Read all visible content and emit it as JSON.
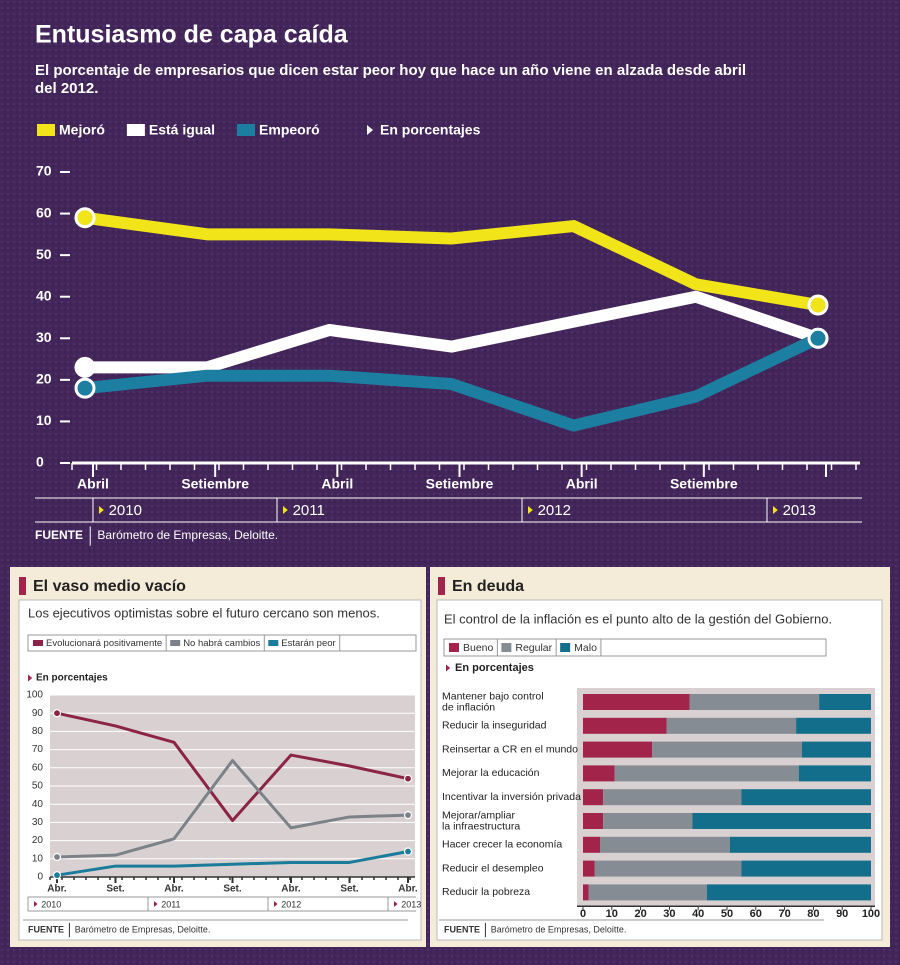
{
  "source_label": "FUENTE",
  "source": "Barómetro de Empresas, Deloitte.",
  "chart_data": [
    {
      "type": "line",
      "title": "Entusiasmo de capa caída",
      "subtitle": "El porcentaje de empresarios que dicen estar peor hoy que hace un año viene en alzada desde abril del 2012.",
      "note": "En porcentajes",
      "categories": [
        "Abril",
        "Setiembre",
        "Abril",
        "Setiembre",
        "Abril",
        "Setiembre",
        null
      ],
      "years": [
        "2010",
        "2011",
        "2012",
        "2013"
      ],
      "series": [
        {
          "name": "Mejoró",
          "color": "#f1e418",
          "values": [
            59,
            55,
            55,
            54,
            57,
            43,
            38
          ]
        },
        {
          "name": "Está igual",
          "color": "#ffffff",
          "values": [
            23,
            23,
            32,
            28,
            34,
            40,
            30
          ]
        },
        {
          "name": "Empeoró",
          "color": "#1c7fa2",
          "values": [
            18,
            21,
            21,
            19,
            9,
            16,
            30
          ]
        }
      ],
      "ylim": [
        0,
        70
      ],
      "yticks": [
        0,
        10,
        20,
        30,
        40,
        50,
        60,
        70
      ]
    },
    {
      "type": "line",
      "title": "El vaso medio vacío",
      "subtitle": "Los ejecutivos optimistas sobre el futuro cercano son menos.",
      "note": "En porcentajes",
      "categories": [
        "Abr.",
        "Set.",
        "Abr.",
        "Set.",
        "Abr.",
        "Set.",
        "Abr."
      ],
      "years": [
        "2010",
        "2011",
        "2012",
        "2013"
      ],
      "series": [
        {
          "name": "Evolucionará positivamente",
          "color": "#8c2448",
          "values": [
            90,
            83,
            74,
            31,
            67,
            61,
            54
          ]
        },
        {
          "name": "No habrá cambios",
          "color": "#7b8389",
          "values": [
            11,
            12,
            21,
            64,
            27,
            33,
            34
          ]
        },
        {
          "name": "Estarán peor",
          "color": "#1b7b9b",
          "values": [
            1,
            6,
            6,
            7,
            8,
            8,
            14
          ]
        }
      ],
      "ylim": [
        0,
        100
      ],
      "yticks": [
        0,
        10,
        20,
        30,
        40,
        50,
        60,
        70,
        80,
        90,
        100
      ],
      "grid": true
    },
    {
      "type": "stacked-bar-horizontal",
      "title": "En deuda",
      "subtitle": "El control de la inflación es el punto alto de la gestión del Gobierno.",
      "note": "En porcentajes",
      "categories": [
        "Mantener bajo control\nde inflación",
        "Reducir la inseguridad",
        "Reinsertar a CR en el mundo",
        "Mejorar la educación",
        "Incentivar la inversión privada",
        "Mejorar/ampliar\nla infraestructura",
        "Hacer crecer la economía",
        "Reducir el desempleo",
        "Reducir la pobreza"
      ],
      "series": [
        {
          "name": "Bueno",
          "color": "#a3244b",
          "values": [
            37,
            29,
            24,
            11,
            7,
            7,
            6,
            4,
            2
          ]
        },
        {
          "name": "Regular",
          "color": "#868c93",
          "values": [
            45,
            45,
            52,
            64,
            48,
            31,
            45,
            51,
            41
          ]
        },
        {
          "name": "Malo",
          "color": "#126e8a",
          "values": [
            18,
            26,
            24,
            25,
            45,
            62,
            49,
            45,
            57
          ]
        }
      ],
      "xlim": [
        0,
        100
      ],
      "xticks": [
        0,
        10,
        20,
        30,
        40,
        50,
        60,
        70,
        80,
        90,
        100
      ]
    }
  ]
}
